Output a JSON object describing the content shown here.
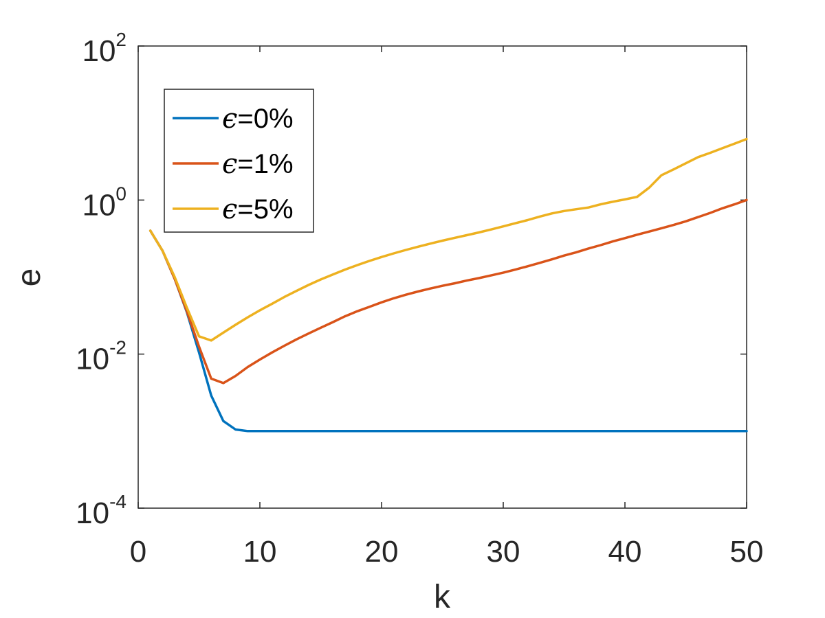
{
  "chart_data": {
    "type": "line",
    "title": "",
    "xlabel": "k",
    "ylabel": "e",
    "xlim": [
      0,
      50
    ],
    "ylim": [
      0.0001,
      100
    ],
    "yscale": "log",
    "grid": false,
    "legend_position": "top-left",
    "x_ticks": [
      {
        "value": 0,
        "label": "0"
      },
      {
        "value": 10,
        "label": "10"
      },
      {
        "value": 20,
        "label": "20"
      },
      {
        "value": 30,
        "label": "30"
      },
      {
        "value": 40,
        "label": "40"
      },
      {
        "value": 50,
        "label": "50"
      }
    ],
    "y_ticks": [
      {
        "value": 0.0001,
        "base": "10",
        "exp": "-4"
      },
      {
        "value": 0.01,
        "base": "10",
        "exp": "-2"
      },
      {
        "value": 1,
        "base": "10",
        "exp": "0"
      },
      {
        "value": 100,
        "base": "10",
        "exp": "2"
      }
    ],
    "series": [
      {
        "name": "ϵ=0%",
        "eps": "ϵ",
        "rest": "=0%",
        "color": "#0072BD",
        "x": [
          1,
          2,
          3,
          4,
          5,
          6,
          7,
          8,
          9,
          10,
          11,
          12,
          13,
          14,
          15,
          16,
          17,
          18,
          19,
          20,
          21,
          22,
          23,
          24,
          25,
          26,
          27,
          28,
          29,
          30,
          31,
          32,
          33,
          34,
          35,
          36,
          37,
          38,
          39,
          40,
          41,
          42,
          43,
          44,
          45,
          46,
          47,
          48,
          49,
          50
        ],
        "y": [
          0.4,
          0.22,
          0.095,
          0.035,
          0.0105,
          0.0029,
          0.00135,
          0.00105,
          0.001,
          0.001,
          0.001,
          0.001,
          0.001,
          0.001,
          0.001,
          0.001,
          0.001,
          0.001,
          0.001,
          0.001,
          0.001,
          0.001,
          0.001,
          0.001,
          0.001,
          0.001,
          0.001,
          0.001,
          0.001,
          0.001,
          0.001,
          0.001,
          0.001,
          0.001,
          0.001,
          0.001,
          0.001,
          0.001,
          0.001,
          0.001,
          0.001,
          0.001,
          0.001,
          0.001,
          0.001,
          0.001,
          0.001,
          0.001,
          0.001,
          0.001
        ]
      },
      {
        "name": "ϵ=1%",
        "eps": "ϵ",
        "rest": "=1%",
        "color": "#D95319",
        "x": [
          1,
          2,
          3,
          4,
          5,
          6,
          7,
          8,
          9,
          10,
          11,
          12,
          13,
          14,
          15,
          16,
          17,
          18,
          19,
          20,
          21,
          22,
          23,
          24,
          25,
          26,
          27,
          28,
          29,
          30,
          31,
          32,
          33,
          34,
          35,
          36,
          37,
          38,
          39,
          40,
          41,
          42,
          43,
          44,
          45,
          46,
          47,
          48,
          49,
          50
        ],
        "y": [
          0.4,
          0.22,
          0.095,
          0.036,
          0.0125,
          0.0048,
          0.0042,
          0.0052,
          0.0068,
          0.0085,
          0.0105,
          0.0128,
          0.0155,
          0.0185,
          0.022,
          0.026,
          0.031,
          0.036,
          0.041,
          0.047,
          0.053,
          0.059,
          0.065,
          0.071,
          0.077,
          0.083,
          0.09,
          0.097,
          0.105,
          0.114,
          0.125,
          0.138,
          0.153,
          0.17,
          0.19,
          0.21,
          0.235,
          0.26,
          0.29,
          0.32,
          0.355,
          0.39,
          0.43,
          0.475,
          0.53,
          0.6,
          0.68,
          0.78,
          0.88,
          1.0
        ]
      },
      {
        "name": "ϵ=5%",
        "eps": "ϵ",
        "rest": "=5%",
        "color": "#EDB120",
        "x": [
          1,
          2,
          3,
          4,
          5,
          6,
          7,
          8,
          9,
          10,
          11,
          12,
          13,
          14,
          15,
          16,
          17,
          18,
          19,
          20,
          21,
          22,
          23,
          24,
          25,
          26,
          27,
          28,
          29,
          30,
          31,
          32,
          33,
          34,
          35,
          36,
          37,
          38,
          39,
          40,
          41,
          42,
          43,
          44,
          45,
          46,
          47,
          48,
          49,
          50
        ],
        "y": [
          0.4,
          0.22,
          0.1,
          0.04,
          0.017,
          0.015,
          0.019,
          0.024,
          0.03,
          0.037,
          0.045,
          0.055,
          0.066,
          0.079,
          0.093,
          0.108,
          0.125,
          0.143,
          0.162,
          0.182,
          0.203,
          0.225,
          0.248,
          0.272,
          0.297,
          0.323,
          0.35,
          0.38,
          0.415,
          0.455,
          0.5,
          0.55,
          0.61,
          0.67,
          0.72,
          0.76,
          0.8,
          0.88,
          0.95,
          1.02,
          1.1,
          1.45,
          2.1,
          2.5,
          3.0,
          3.6,
          4.1,
          4.7,
          5.4,
          6.2
        ]
      }
    ]
  }
}
